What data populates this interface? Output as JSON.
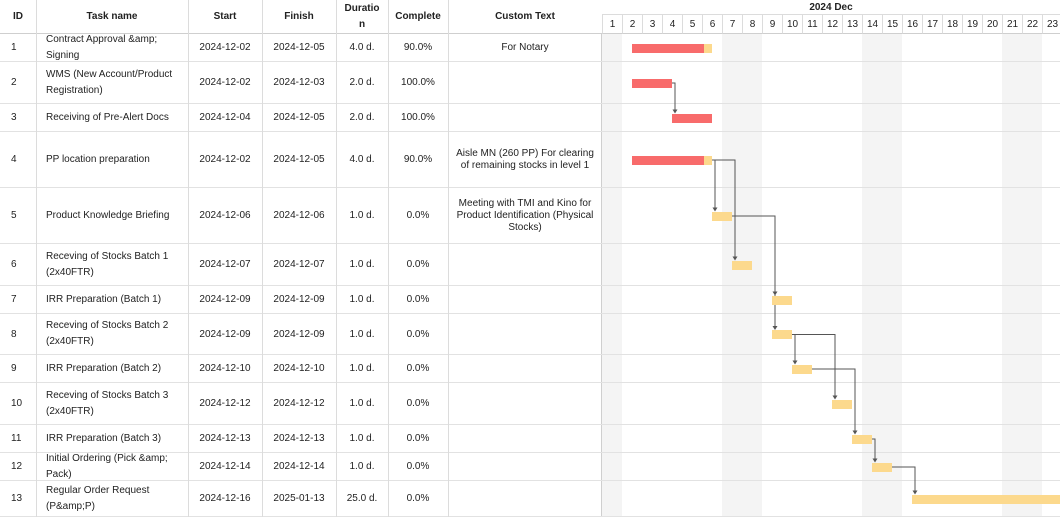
{
  "columns": {
    "id": "ID",
    "task_name": "Task name",
    "start": "Start",
    "finish": "Finish",
    "duration_line1": "Duratio",
    "duration_line2": "n",
    "complete": "Complete",
    "custom_text": "Custom Text"
  },
  "timeline": {
    "month_label": "2024 Dec",
    "days": [
      "1",
      "2",
      "3",
      "4",
      "5",
      "6",
      "7",
      "8",
      "9",
      "10",
      "11",
      "12",
      "13",
      "14",
      "15",
      "16",
      "17",
      "18",
      "19",
      "20",
      "21",
      "22",
      "23"
    ]
  },
  "colors": {
    "progress": "#f86b6b",
    "remaining": "#fcd98d",
    "link": "#555555",
    "weekend_shade": "#f4f4f4"
  },
  "tasks": [
    {
      "id": "1",
      "name": "Contract Approval &amp; Signing",
      "start": "2024-12-02",
      "finish": "2024-12-05",
      "duration": "4.0 d.",
      "complete": "90.0%",
      "custom": "For Notary",
      "bar_start_day": 2,
      "bar_days": 4,
      "progress": 0.9
    },
    {
      "id": "2",
      "name": "WMS (New Account/Product Registration)",
      "start": "2024-12-02",
      "finish": "2024-12-03",
      "duration": "2.0 d.",
      "complete": "100.0%",
      "custom": "",
      "bar_start_day": 2,
      "bar_days": 2,
      "progress": 1.0
    },
    {
      "id": "3",
      "name": "Receiving of Pre-Alert Docs",
      "start": "2024-12-04",
      "finish": "2024-12-05",
      "duration": "2.0 d.",
      "complete": "100.0%",
      "custom": "",
      "bar_start_day": 4,
      "bar_days": 2,
      "progress": 1.0
    },
    {
      "id": "4",
      "name": "PP location preparation",
      "start": "2024-12-02",
      "finish": "2024-12-05",
      "duration": "4.0 d.",
      "complete": "90.0%",
      "custom": "Aisle MN  (260 PP) For clearing of remaining stocks in level 1",
      "bar_start_day": 2,
      "bar_days": 4,
      "progress": 0.9
    },
    {
      "id": "5",
      "name": "Product Knowledge Briefing",
      "start": "2024-12-06",
      "finish": "2024-12-06",
      "duration": "1.0 d.",
      "complete": "0.0%",
      "custom": "Meeting with TMI and Kino for Product Identification (Physical Stocks)",
      "bar_start_day": 6,
      "bar_days": 1,
      "progress": 0
    },
    {
      "id": "6",
      "name": "Receving of Stocks Batch 1 (2x40FTR)",
      "start": "2024-12-07",
      "finish": "2024-12-07",
      "duration": "1.0 d.",
      "complete": "0.0%",
      "custom": "",
      "bar_start_day": 7,
      "bar_days": 1,
      "progress": 0
    },
    {
      "id": "7",
      "name": "IRR Preparation (Batch 1)",
      "start": "2024-12-09",
      "finish": "2024-12-09",
      "duration": "1.0 d.",
      "complete": "0.0%",
      "custom": "",
      "bar_start_day": 9,
      "bar_days": 1,
      "progress": 0
    },
    {
      "id": "8",
      "name": "Receving of Stocks Batch 2 (2x40FTR)",
      "start": "2024-12-09",
      "finish": "2024-12-09",
      "duration": "1.0 d.",
      "complete": "0.0%",
      "custom": "",
      "bar_start_day": 9,
      "bar_days": 1,
      "progress": 0
    },
    {
      "id": "9",
      "name": "IRR Preparation (Batch 2)",
      "start": "2024-12-10",
      "finish": "2024-12-10",
      "duration": "1.0 d.",
      "complete": "0.0%",
      "custom": "",
      "bar_start_day": 10,
      "bar_days": 1,
      "progress": 0
    },
    {
      "id": "10",
      "name": "Receving of Stocks Batch 3 (2x40FTR)",
      "start": "2024-12-12",
      "finish": "2024-12-12",
      "duration": "1.0 d.",
      "complete": "0.0%",
      "custom": "",
      "bar_start_day": 12,
      "bar_days": 1,
      "progress": 0
    },
    {
      "id": "11",
      "name": "IRR Preparation (Batch 3)",
      "start": "2024-12-13",
      "finish": "2024-12-13",
      "duration": "1.0 d.",
      "complete": "0.0%",
      "custom": "",
      "bar_start_day": 13,
      "bar_days": 1,
      "progress": 0
    },
    {
      "id": "12",
      "name": "Initial Ordering (Pick &amp; Pack)",
      "start": "2024-12-14",
      "finish": "2024-12-14",
      "duration": "1.0 d.",
      "complete": "0.0%",
      "custom": "",
      "bar_start_day": 14,
      "bar_days": 1,
      "progress": 0
    },
    {
      "id": "13",
      "name": "Regular Order Request (P&amp;P)",
      "start": "2024-12-16",
      "finish": "2025-01-13",
      "duration": "25.0 d.",
      "complete": "0.0%",
      "custom": "",
      "bar_start_day": 16,
      "bar_days": 25,
      "progress": 0
    }
  ],
  "links": [
    {
      "from": "2",
      "to": "3"
    },
    {
      "from": "4",
      "to": "5"
    },
    {
      "from": "4",
      "to": "6"
    },
    {
      "from": "5",
      "to": "7"
    },
    {
      "from": "5",
      "to": "8"
    },
    {
      "from": "8",
      "to": "9"
    },
    {
      "from": "8",
      "to": "10"
    },
    {
      "from": "9",
      "to": "11"
    },
    {
      "from": "11",
      "to": "12"
    },
    {
      "from": "12",
      "to": "13"
    }
  ]
}
